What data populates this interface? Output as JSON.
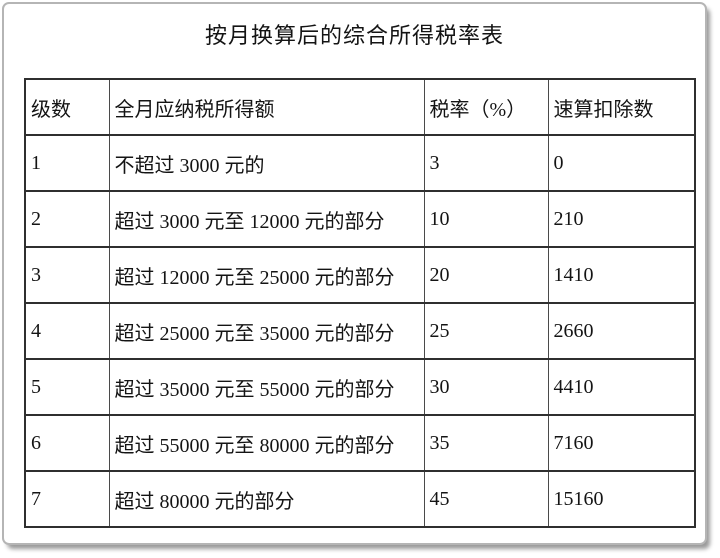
{
  "doc": {
    "title": "按月换算后的综合所得税率表"
  },
  "table": {
    "headers": [
      "级数",
      "全月应纳税所得额",
      "税率（%）",
      "速算扣除数"
    ],
    "rows": [
      [
        "1",
        "不超过 3000 元的",
        "3",
        "0"
      ],
      [
        "2",
        "超过 3000 元至 12000 元的部分",
        "10",
        "210"
      ],
      [
        "3",
        "超过 12000 元至 25000 元的部分",
        "20",
        "1410"
      ],
      [
        "4",
        "超过 25000 元至 35000 元的部分",
        "25",
        "2660"
      ],
      [
        "5",
        "超过 35000 元至 55000 元的部分",
        "30",
        "4410"
      ],
      [
        "6",
        "超过 55000 元至 80000 元的部分",
        "35",
        "7160"
      ],
      [
        "7",
        "超过 80000 元的部分",
        "45",
        "15160"
      ]
    ]
  },
  "colors": {
    "text": "#141414",
    "table_border": "#2f2f2f",
    "card_border": "#b5b5b5",
    "card_shadow": "#9a9a9a",
    "background": "#ffffff"
  }
}
